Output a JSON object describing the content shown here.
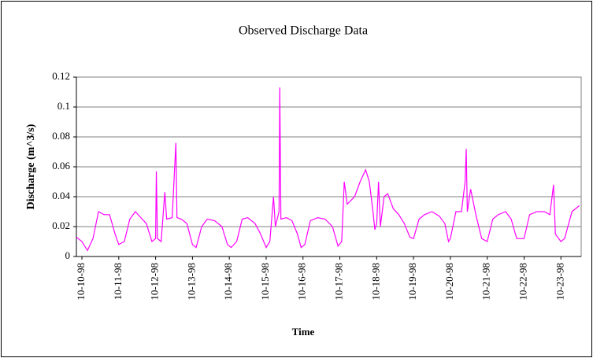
{
  "chart_data": {
    "type": "line",
    "title": "Observed Discharge Data",
    "x_label": "Time",
    "y_label": "Discharge (m^3/s)",
    "x": [
      -0.15,
      0,
      0.15,
      0.3,
      0.45,
      0.6,
      0.75,
      0.9,
      1.0,
      1.15,
      1.3,
      1.45,
      1.6,
      1.75,
      1.9,
      2.0,
      2.02,
      2.05,
      2.15,
      2.25,
      2.3,
      2.45,
      2.55,
      2.58,
      2.7,
      2.85,
      3.0,
      3.1,
      3.25,
      3.4,
      3.6,
      3.8,
      3.95,
      4.05,
      4.2,
      4.35,
      4.5,
      4.7,
      4.85,
      5.0,
      5.1,
      5.2,
      5.25,
      5.35,
      5.37,
      5.4,
      5.55,
      5.7,
      5.85,
      5.95,
      6.05,
      6.2,
      6.4,
      6.6,
      6.8,
      6.95,
      7.05,
      7.12,
      7.2,
      7.4,
      7.55,
      7.7,
      7.8,
      7.9,
      7.95,
      8.0,
      8.05,
      8.1,
      8.2,
      8.3,
      8.45,
      8.6,
      8.75,
      8.9,
      9.0,
      9.15,
      9.3,
      9.5,
      9.7,
      9.85,
      9.95,
      10.0,
      10.15,
      10.3,
      10.4,
      10.43,
      10.46,
      10.55,
      10.7,
      10.85,
      11.0,
      11.15,
      11.3,
      11.5,
      11.65,
      11.8,
      12.0,
      12.15,
      12.35,
      12.55,
      12.7,
      12.8,
      12.85,
      13.0,
      13.1,
      13.3,
      13.5
    ],
    "series": [
      {
        "name": "Discharge",
        "color": "#ff00ff",
        "values": [
          0.013,
          0.01,
          0.004,
          0.012,
          0.03,
          0.028,
          0.028,
          0.015,
          0.008,
          0.01,
          0.025,
          0.03,
          0.026,
          0.022,
          0.01,
          0.012,
          0.057,
          0.012,
          0.01,
          0.043,
          0.025,
          0.026,
          0.076,
          0.026,
          0.025,
          0.022,
          0.008,
          0.006,
          0.02,
          0.025,
          0.024,
          0.02,
          0.008,
          0.006,
          0.01,
          0.025,
          0.026,
          0.022,
          0.015,
          0.006,
          0.01,
          0.04,
          0.02,
          0.03,
          0.113,
          0.025,
          0.026,
          0.024,
          0.015,
          0.006,
          0.008,
          0.024,
          0.026,
          0.025,
          0.02,
          0.007,
          0.01,
          0.05,
          0.035,
          0.04,
          0.05,
          0.058,
          0.05,
          0.03,
          0.018,
          0.022,
          0.05,
          0.02,
          0.04,
          0.042,
          0.032,
          0.028,
          0.022,
          0.013,
          0.012,
          0.025,
          0.028,
          0.03,
          0.027,
          0.022,
          0.01,
          0.012,
          0.03,
          0.03,
          0.05,
          0.072,
          0.03,
          0.045,
          0.027,
          0.012,
          0.01,
          0.025,
          0.028,
          0.03,
          0.025,
          0.012,
          0.012,
          0.028,
          0.03,
          0.03,
          0.028,
          0.048,
          0.015,
          0.01,
          0.012,
          0.03,
          0.034
        ]
      }
    ],
    "xlim": [
      -0.15,
      13.55
    ],
    "xticks": [
      {
        "value": 0,
        "label": "10-10-98"
      },
      {
        "value": 1,
        "label": "10-11-98"
      },
      {
        "value": 2,
        "label": "10-12-98"
      },
      {
        "value": 3,
        "label": "10-13-98"
      },
      {
        "value": 4,
        "label": "10-14-98"
      },
      {
        "value": 5,
        "label": "10-15-98"
      },
      {
        "value": 6,
        "label": "10-16-98"
      },
      {
        "value": 7,
        "label": "10-17-98"
      },
      {
        "value": 8,
        "label": "10-18-98"
      },
      {
        "value": 9,
        "label": "10-19-98"
      },
      {
        "value": 10,
        "label": "10-20-98"
      },
      {
        "value": 11,
        "label": "10-21-98"
      },
      {
        "value": 12,
        "label": "10-22-98"
      },
      {
        "value": 13,
        "label": "10-23-98"
      }
    ],
    "ylim": [
      0,
      0.12
    ],
    "yticks": [
      0,
      0.02,
      0.04,
      0.06,
      0.08,
      0.1,
      0.12
    ],
    "grid": true
  }
}
